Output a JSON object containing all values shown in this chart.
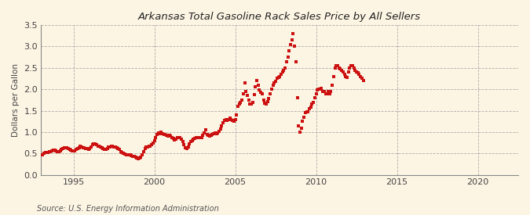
{
  "title": "Arkansas Total Gasoline Rack Sales Price by All Sellers",
  "ylabel": "Dollars per Gallon",
  "source": "Source: U.S. Energy Information Administration",
  "ylim": [
    0.0,
    3.5
  ],
  "yticks": [
    0.0,
    0.5,
    1.0,
    1.5,
    2.0,
    2.5,
    3.0,
    3.5
  ],
  "xlim_start": 1993.0,
  "xlim_end": 2022.5,
  "xticks": [
    1995,
    2000,
    2005,
    2010,
    2015,
    2020
  ],
  "background_color": "#fdf5e4",
  "data_color": "#cc1111",
  "marker_size": 3.0,
  "data": [
    [
      1993.0,
      0.47
    ],
    [
      1993.083,
      0.48
    ],
    [
      1993.167,
      0.5
    ],
    [
      1993.25,
      0.52
    ],
    [
      1993.333,
      0.52
    ],
    [
      1993.417,
      0.53
    ],
    [
      1993.5,
      0.54
    ],
    [
      1993.583,
      0.55
    ],
    [
      1993.667,
      0.57
    ],
    [
      1993.75,
      0.58
    ],
    [
      1993.833,
      0.58
    ],
    [
      1993.917,
      0.57
    ],
    [
      1994.0,
      0.55
    ],
    [
      1994.083,
      0.54
    ],
    [
      1994.167,
      0.56
    ],
    [
      1994.25,
      0.59
    ],
    [
      1994.333,
      0.62
    ],
    [
      1994.417,
      0.63
    ],
    [
      1994.5,
      0.63
    ],
    [
      1994.583,
      0.63
    ],
    [
      1994.667,
      0.61
    ],
    [
      1994.75,
      0.6
    ],
    [
      1994.833,
      0.58
    ],
    [
      1994.917,
      0.57
    ],
    [
      1995.0,
      0.56
    ],
    [
      1995.083,
      0.57
    ],
    [
      1995.167,
      0.6
    ],
    [
      1995.25,
      0.62
    ],
    [
      1995.333,
      0.64
    ],
    [
      1995.417,
      0.67
    ],
    [
      1995.5,
      0.66
    ],
    [
      1995.583,
      0.64
    ],
    [
      1995.667,
      0.63
    ],
    [
      1995.75,
      0.62
    ],
    [
      1995.833,
      0.61
    ],
    [
      1995.917,
      0.6
    ],
    [
      1996.0,
      0.62
    ],
    [
      1996.083,
      0.65
    ],
    [
      1996.167,
      0.7
    ],
    [
      1996.25,
      0.72
    ],
    [
      1996.333,
      0.72
    ],
    [
      1996.417,
      0.7
    ],
    [
      1996.5,
      0.68
    ],
    [
      1996.583,
      0.67
    ],
    [
      1996.667,
      0.65
    ],
    [
      1996.75,
      0.64
    ],
    [
      1996.833,
      0.62
    ],
    [
      1996.917,
      0.6
    ],
    [
      1997.0,
      0.6
    ],
    [
      1997.083,
      0.62
    ],
    [
      1997.167,
      0.65
    ],
    [
      1997.25,
      0.66
    ],
    [
      1997.333,
      0.67
    ],
    [
      1997.417,
      0.67
    ],
    [
      1997.5,
      0.66
    ],
    [
      1997.583,
      0.65
    ],
    [
      1997.667,
      0.64
    ],
    [
      1997.75,
      0.62
    ],
    [
      1997.833,
      0.59
    ],
    [
      1997.917,
      0.55
    ],
    [
      1998.0,
      0.52
    ],
    [
      1998.083,
      0.5
    ],
    [
      1998.167,
      0.49
    ],
    [
      1998.25,
      0.48
    ],
    [
      1998.333,
      0.48
    ],
    [
      1998.417,
      0.48
    ],
    [
      1998.5,
      0.47
    ],
    [
      1998.583,
      0.46
    ],
    [
      1998.667,
      0.44
    ],
    [
      1998.75,
      0.43
    ],
    [
      1998.833,
      0.42
    ],
    [
      1998.917,
      0.4
    ],
    [
      1999.0,
      0.38
    ],
    [
      1999.083,
      0.39
    ],
    [
      1999.167,
      0.42
    ],
    [
      1999.25,
      0.48
    ],
    [
      1999.333,
      0.55
    ],
    [
      1999.417,
      0.62
    ],
    [
      1999.5,
      0.65
    ],
    [
      1999.583,
      0.66
    ],
    [
      1999.667,
      0.67
    ],
    [
      1999.75,
      0.68
    ],
    [
      1999.833,
      0.7
    ],
    [
      1999.917,
      0.75
    ],
    [
      2000.0,
      0.8
    ],
    [
      2000.083,
      0.88
    ],
    [
      2000.167,
      0.95
    ],
    [
      2000.25,
      0.98
    ],
    [
      2000.333,
      0.97
    ],
    [
      2000.417,
      1.0
    ],
    [
      2000.5,
      0.97
    ],
    [
      2000.583,
      0.95
    ],
    [
      2000.667,
      0.95
    ],
    [
      2000.75,
      0.92
    ],
    [
      2000.833,
      0.9
    ],
    [
      2000.917,
      0.93
    ],
    [
      2001.0,
      0.9
    ],
    [
      2001.083,
      0.87
    ],
    [
      2001.167,
      0.85
    ],
    [
      2001.25,
      0.82
    ],
    [
      2001.333,
      0.83
    ],
    [
      2001.417,
      0.87
    ],
    [
      2001.5,
      0.88
    ],
    [
      2001.583,
      0.87
    ],
    [
      2001.667,
      0.84
    ],
    [
      2001.75,
      0.78
    ],
    [
      2001.833,
      0.7
    ],
    [
      2001.917,
      0.63
    ],
    [
      2002.0,
      0.62
    ],
    [
      2002.083,
      0.65
    ],
    [
      2002.167,
      0.72
    ],
    [
      2002.25,
      0.78
    ],
    [
      2002.333,
      0.8
    ],
    [
      2002.417,
      0.83
    ],
    [
      2002.5,
      0.85
    ],
    [
      2002.583,
      0.87
    ],
    [
      2002.667,
      0.88
    ],
    [
      2002.75,
      0.88
    ],
    [
      2002.833,
      0.87
    ],
    [
      2002.917,
      0.88
    ],
    [
      2003.0,
      0.92
    ],
    [
      2003.083,
      0.98
    ],
    [
      2003.167,
      1.05
    ],
    [
      2003.25,
      0.95
    ],
    [
      2003.333,
      0.92
    ],
    [
      2003.417,
      0.9
    ],
    [
      2003.5,
      0.92
    ],
    [
      2003.583,
      0.95
    ],
    [
      2003.667,
      0.97
    ],
    [
      2003.75,
      0.98
    ],
    [
      2003.833,
      0.97
    ],
    [
      2003.917,
      0.98
    ],
    [
      2004.0,
      1.02
    ],
    [
      2004.083,
      1.08
    ],
    [
      2004.167,
      1.15
    ],
    [
      2004.25,
      1.22
    ],
    [
      2004.333,
      1.28
    ],
    [
      2004.417,
      1.3
    ],
    [
      2004.5,
      1.28
    ],
    [
      2004.583,
      1.3
    ],
    [
      2004.667,
      1.32
    ],
    [
      2004.75,
      1.3
    ],
    [
      2004.833,
      1.27
    ],
    [
      2004.917,
      1.25
    ],
    [
      2005.0,
      1.3
    ],
    [
      2005.083,
      1.4
    ],
    [
      2005.167,
      1.6
    ],
    [
      2005.25,
      1.65
    ],
    [
      2005.333,
      1.7
    ],
    [
      2005.417,
      1.75
    ],
    [
      2005.5,
      1.9
    ],
    [
      2005.583,
      2.15
    ],
    [
      2005.667,
      1.95
    ],
    [
      2005.75,
      1.85
    ],
    [
      2005.833,
      1.75
    ],
    [
      2005.917,
      1.65
    ],
    [
      2006.0,
      1.65
    ],
    [
      2006.083,
      1.7
    ],
    [
      2006.167,
      1.88
    ],
    [
      2006.25,
      2.05
    ],
    [
      2006.333,
      2.2
    ],
    [
      2006.417,
      2.1
    ],
    [
      2006.5,
      1.98
    ],
    [
      2006.583,
      1.93
    ],
    [
      2006.667,
      1.9
    ],
    [
      2006.75,
      1.75
    ],
    [
      2006.833,
      1.68
    ],
    [
      2006.917,
      1.65
    ],
    [
      2007.0,
      1.72
    ],
    [
      2007.083,
      1.78
    ],
    [
      2007.167,
      1.9
    ],
    [
      2007.25,
      2.0
    ],
    [
      2007.333,
      2.1
    ],
    [
      2007.417,
      2.15
    ],
    [
      2007.5,
      2.18
    ],
    [
      2007.583,
      2.25
    ],
    [
      2007.667,
      2.28
    ],
    [
      2007.75,
      2.3
    ],
    [
      2007.833,
      2.35
    ],
    [
      2007.917,
      2.4
    ],
    [
      2008.0,
      2.45
    ],
    [
      2008.083,
      2.5
    ],
    [
      2008.167,
      2.65
    ],
    [
      2008.25,
      2.75
    ],
    [
      2008.333,
      2.9
    ],
    [
      2008.417,
      3.05
    ],
    [
      2008.5,
      3.15
    ],
    [
      2008.583,
      3.3
    ],
    [
      2008.667,
      3.0
    ],
    [
      2008.75,
      2.65
    ],
    [
      2008.833,
      1.8
    ],
    [
      2008.917,
      1.15
    ],
    [
      2009.0,
      1.0
    ],
    [
      2009.083,
      1.1
    ],
    [
      2009.167,
      1.25
    ],
    [
      2009.25,
      1.35
    ],
    [
      2009.333,
      1.45
    ],
    [
      2009.417,
      1.48
    ],
    [
      2009.5,
      1.48
    ],
    [
      2009.583,
      1.55
    ],
    [
      2009.667,
      1.58
    ],
    [
      2009.75,
      1.65
    ],
    [
      2009.833,
      1.7
    ],
    [
      2009.917,
      1.8
    ],
    [
      2010.0,
      1.9
    ],
    [
      2010.083,
      1.98
    ],
    [
      2010.167,
      2.0
    ],
    [
      2010.25,
      2.0
    ],
    [
      2010.333,
      2.02
    ],
    [
      2010.417,
      1.95
    ],
    [
      2010.5,
      1.95
    ],
    [
      2010.583,
      1.9
    ],
    [
      2010.667,
      1.9
    ],
    [
      2010.75,
      1.95
    ],
    [
      2010.833,
      1.9
    ],
    [
      2010.917,
      1.95
    ],
    [
      2011.0,
      2.1
    ],
    [
      2011.083,
      2.3
    ],
    [
      2011.167,
      2.5
    ],
    [
      2011.25,
      2.55
    ],
    [
      2011.333,
      2.55
    ],
    [
      2011.417,
      2.5
    ],
    [
      2011.5,
      2.48
    ],
    [
      2011.583,
      2.45
    ],
    [
      2011.667,
      2.4
    ],
    [
      2011.75,
      2.35
    ],
    [
      2011.833,
      2.3
    ],
    [
      2011.917,
      2.28
    ],
    [
      2012.0,
      2.4
    ],
    [
      2012.083,
      2.5
    ],
    [
      2012.167,
      2.55
    ],
    [
      2012.25,
      2.55
    ],
    [
      2012.333,
      2.5
    ],
    [
      2012.417,
      2.45
    ],
    [
      2012.5,
      2.4
    ],
    [
      2012.583,
      2.38
    ],
    [
      2012.667,
      2.35
    ],
    [
      2012.75,
      2.3
    ],
    [
      2012.833,
      2.25
    ],
    [
      2012.917,
      2.2
    ]
  ]
}
